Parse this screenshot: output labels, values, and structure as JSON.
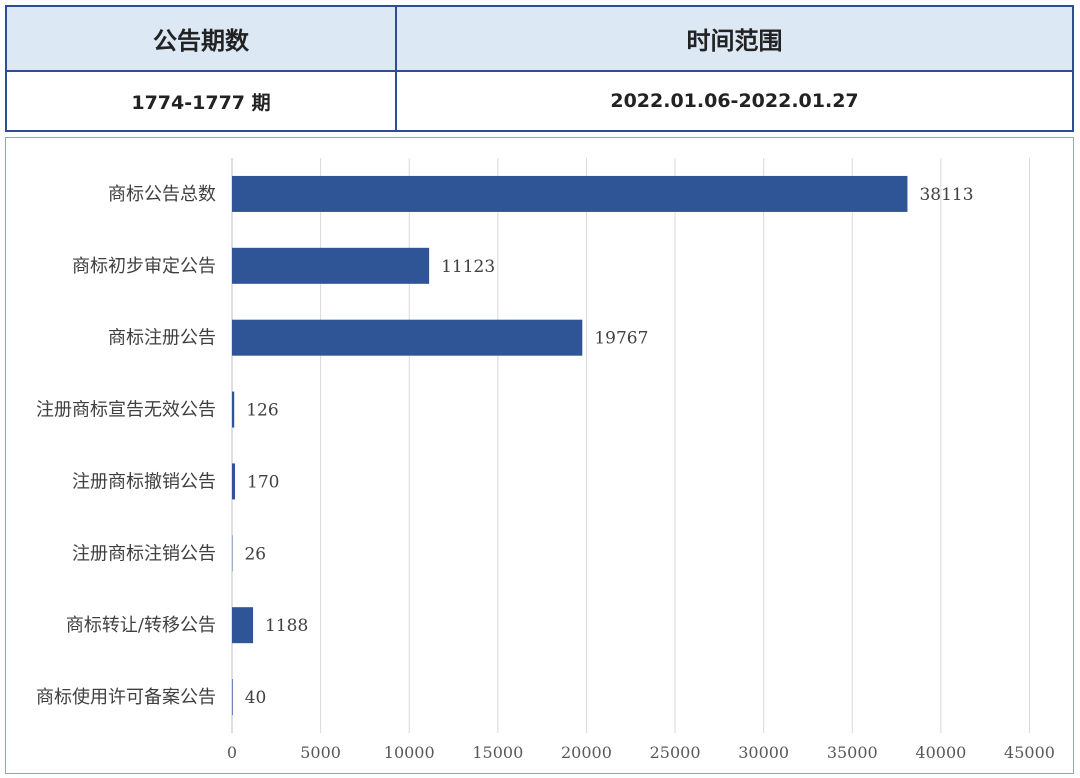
{
  "table": {
    "headers": [
      "公告期数",
      "时间范围"
    ],
    "values": [
      "1774-1777 期",
      "2022.01.06-2022.01.27"
    ]
  },
  "chart_data": {
    "type": "bar",
    "orientation": "horizontal",
    "categories": [
      "商标公告总数",
      "商标初步审定公告",
      "商标注册公告",
      "注册商标宣告无效公告",
      "注册商标撤销公告",
      "注册商标注销公告",
      "商标转让/转移公告",
      "商标使用许可备案公告"
    ],
    "values": [
      38113,
      11123,
      19767,
      126,
      170,
      26,
      1188,
      40
    ],
    "xlim": [
      0,
      45000
    ],
    "xticks": [
      0,
      5000,
      10000,
      15000,
      20000,
      25000,
      30000,
      35000,
      40000,
      45000
    ],
    "grid": true,
    "colors": {
      "bar": "#2f5597",
      "grid": "#d9d9d9",
      "axis": "#bfbfbf"
    }
  }
}
